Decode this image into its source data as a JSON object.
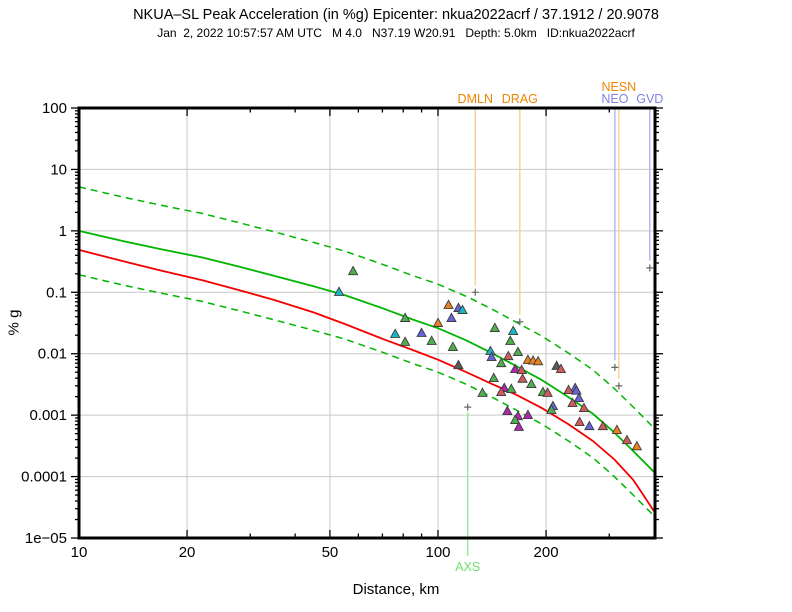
{
  "header": {
    "title": "NKUA–SL Peak Acceleration (in %g) Epicenter: nkua2022acrf / 37.1912 / 20.9078",
    "subtitle": "Jan  2, 2022 10:57:57 AM UTC   M 4.0   N37.19 W20.91   Depth: 5.0km   ID:nkua2022acrf"
  },
  "chart_data": {
    "type": "scatter",
    "title": "NKUA–SL Peak Acceleration (in %g) Epicenter: nkua2022acrf / 37.1912 / 20.9078",
    "xlabel": "Distance, km",
    "ylabel": "% g",
    "x_scale": "log",
    "y_scale": "log",
    "xlim": [
      10,
      402
    ],
    "ylim": [
      1e-05,
      100
    ],
    "grid": true,
    "x_ticks": [
      10,
      20,
      50,
      100,
      200
    ],
    "x_tick_labels": [
      "10",
      "20",
      "50",
      "100",
      "200"
    ],
    "x_minor_ticks": [
      30,
      40,
      60,
      70,
      80,
      90,
      300,
      400
    ],
    "y_ticks": [
      100,
      10,
      1,
      0.1,
      0.01,
      0.001,
      0.0001,
      1e-05
    ],
    "y_tick_labels": [
      "100",
      "10",
      "1",
      "0.1",
      "0.01",
      "0.001",
      "0.0001",
      "1e−05"
    ],
    "curves": [
      {
        "name": "median",
        "style": "solid",
        "color": "#00b400",
        "width": 1.8,
        "points": [
          [
            10,
            1.0
          ],
          [
            13,
            0.7
          ],
          [
            17,
            0.5
          ],
          [
            22,
            0.37
          ],
          [
            28,
            0.26
          ],
          [
            35,
            0.185
          ],
          [
            45,
            0.125
          ],
          [
            55,
            0.09
          ],
          [
            70,
            0.055
          ],
          [
            85,
            0.036
          ],
          [
            100,
            0.026
          ],
          [
            120,
            0.0165
          ],
          [
            140,
            0.0105
          ],
          [
            165,
            0.0063
          ],
          [
            195,
            0.0037
          ],
          [
            230,
            0.002
          ],
          [
            270,
            0.00105
          ],
          [
            310,
            0.00052
          ],
          [
            350,
            0.00026
          ],
          [
            402,
            0.000115
          ]
        ]
      },
      {
        "name": "median-plus-sigma",
        "style": "dashed",
        "color": "#00b400",
        "width": 1.5,
        "base": "median",
        "factor": 5.2
      },
      {
        "name": "median-minus-sigma",
        "style": "dashed",
        "color": "#00b400",
        "width": 1.5,
        "base": "median",
        "factor": 0.1923
      },
      {
        "name": "secondary",
        "style": "solid",
        "color": "#f40000",
        "width": 1.8,
        "points": [
          [
            10,
            0.49
          ],
          [
            13,
            0.33
          ],
          [
            17,
            0.225
          ],
          [
            22,
            0.158
          ],
          [
            28,
            0.108
          ],
          [
            35,
            0.075
          ],
          [
            45,
            0.047
          ],
          [
            55,
            0.0305
          ],
          [
            70,
            0.0175
          ],
          [
            85,
            0.0115
          ],
          [
            100,
            0.008
          ],
          [
            120,
            0.005
          ],
          [
            140,
            0.0033
          ],
          [
            165,
            0.00215
          ],
          [
            195,
            0.0013
          ],
          [
            230,
            0.00072
          ],
          [
            270,
            0.00038
          ],
          [
            310,
            0.00019
          ],
          [
            350,
            8.8e-05
          ],
          [
            402,
            2.6e-05
          ]
        ]
      }
    ],
    "marker_colors": {
      "green": "#4fae4f",
      "cyan": "#1ab8c4",
      "violet": "#6464d8",
      "orange": "#e8821e",
      "red": "#cf5b5b",
      "magenta": "#b027b0",
      "gray": "#5a5a5a"
    },
    "station_points": [
      {
        "d": 58,
        "pga": 0.22,
        "color": "green"
      },
      {
        "d": 53,
        "pga": 0.101,
        "color": "cyan"
      },
      {
        "d": 81,
        "pga": 0.038,
        "color": "green"
      },
      {
        "d": 90,
        "pga": 0.0217,
        "color": "violet"
      },
      {
        "d": 76,
        "pga": 0.0209,
        "color": "cyan"
      },
      {
        "d": 81,
        "pga": 0.0155,
        "color": "green"
      },
      {
        "d": 96,
        "pga": 0.0161,
        "color": "green"
      },
      {
        "d": 100,
        "pga": 0.0315,
        "color": "orange"
      },
      {
        "d": 107,
        "pga": 0.0619,
        "color": "orange"
      },
      {
        "d": 114,
        "pga": 0.0553,
        "color": "violet"
      },
      {
        "d": 117,
        "pga": 0.0513,
        "color": "cyan"
      },
      {
        "d": 109,
        "pga": 0.038,
        "color": "violet"
      },
      {
        "d": 110,
        "pga": 0.0128,
        "color": "green"
      },
      {
        "d": 114,
        "pga": 0.0065,
        "color": "gray"
      },
      {
        "d": 144,
        "pga": 0.0261,
        "color": "green"
      },
      {
        "d": 162,
        "pga": 0.0233,
        "color": "cyan"
      },
      {
        "d": 140,
        "pga": 0.011,
        "color": "cyan"
      },
      {
        "d": 141,
        "pga": 0.0088,
        "color": "violet"
      },
      {
        "d": 157,
        "pga": 0.0091,
        "color": "red"
      },
      {
        "d": 159,
        "pga": 0.0161,
        "color": "green"
      },
      {
        "d": 167,
        "pga": 0.0106,
        "color": "green"
      },
      {
        "d": 164,
        "pga": 0.0056,
        "color": "magenta"
      },
      {
        "d": 178,
        "pga": 0.0079,
        "color": "orange"
      },
      {
        "d": 184,
        "pga": 0.0077,
        "color": "orange"
      },
      {
        "d": 190,
        "pga": 0.0075,
        "color": "orange"
      },
      {
        "d": 150,
        "pga": 0.007,
        "color": "green"
      },
      {
        "d": 171,
        "pga": 0.0054,
        "color": "red"
      },
      {
        "d": 214,
        "pga": 0.0063,
        "color": "gray"
      },
      {
        "d": 220,
        "pga": 0.0056,
        "color": "red"
      },
      {
        "d": 143,
        "pga": 0.004,
        "color": "green"
      },
      {
        "d": 172,
        "pga": 0.0039,
        "color": "red"
      },
      {
        "d": 182,
        "pga": 0.0032,
        "color": "green"
      },
      {
        "d": 153,
        "pga": 0.00275,
        "color": "magenta"
      },
      {
        "d": 150,
        "pga": 0.00237,
        "color": "red"
      },
      {
        "d": 160,
        "pga": 0.00265,
        "color": "green"
      },
      {
        "d": 133,
        "pga": 0.00229,
        "color": "green"
      },
      {
        "d": 196,
        "pga": 0.00237,
        "color": "green"
      },
      {
        "d": 202,
        "pga": 0.00229,
        "color": "red"
      },
      {
        "d": 241,
        "pga": 0.00275,
        "color": "violet"
      },
      {
        "d": 231,
        "pga": 0.00255,
        "color": "red"
      },
      {
        "d": 243,
        "pga": 0.00249,
        "color": "violet"
      },
      {
        "d": 247,
        "pga": 0.00189,
        "color": "violet"
      },
      {
        "d": 237,
        "pga": 0.00157,
        "color": "red"
      },
      {
        "d": 209,
        "pga": 0.0014,
        "color": "violet"
      },
      {
        "d": 255,
        "pga": 0.0013,
        "color": "red"
      },
      {
        "d": 207,
        "pga": 0.00121,
        "color": "green"
      },
      {
        "d": 248,
        "pga": 0.00077,
        "color": "red"
      },
      {
        "d": 264,
        "pga": 0.00066,
        "color": "violet"
      },
      {
        "d": 288,
        "pga": 0.00066,
        "color": "red"
      },
      {
        "d": 315,
        "pga": 0.00057,
        "color": "orange"
      },
      {
        "d": 336,
        "pga": 0.00039,
        "color": "red"
      },
      {
        "d": 358,
        "pga": 0.00031,
        "color": "orange"
      },
      {
        "d": 156,
        "pga": 0.00116,
        "color": "magenta"
      },
      {
        "d": 167,
        "pga": 0.00096,
        "color": "magenta"
      },
      {
        "d": 178,
        "pga": 0.001,
        "color": "magenta"
      },
      {
        "d": 164,
        "pga": 0.00083,
        "color": "green"
      },
      {
        "d": 168,
        "pga": 0.00064,
        "color": "magenta"
      }
    ],
    "flagged_stations": [
      {
        "code": "DMLN",
        "d": 127,
        "pga": 0.1,
        "group": "orange",
        "label_row": 1,
        "anchor": "top"
      },
      {
        "code": "DRAG",
        "d": 169,
        "pga": 0.033,
        "group": "orange",
        "label_row": 1,
        "anchor": "top"
      },
      {
        "code": "NESN",
        "d": 319,
        "pga": 0.003,
        "group": "orange",
        "label_row": 2,
        "anchor": "top"
      },
      {
        "code": "NEO",
        "d": 311,
        "pga": 0.006,
        "group": "violet",
        "label_row": 1,
        "anchor": "top"
      },
      {
        "code": "GVD",
        "d": 389,
        "pga": 0.25,
        "group": "violet",
        "label_row": 1,
        "anchor": "top"
      },
      {
        "code": "AXS",
        "d": 121,
        "pga": 0.00135,
        "group": "green",
        "label_row": 1,
        "anchor": "bottom"
      }
    ],
    "station_group_colors": {
      "orange": {
        "line": "#f8cf92",
        "label": "#ef8500"
      },
      "violet": {
        "line": "#b4b4f0",
        "label": "#8282e6"
      },
      "green": {
        "line": "#98e898",
        "label": "#6ede6e"
      }
    }
  }
}
